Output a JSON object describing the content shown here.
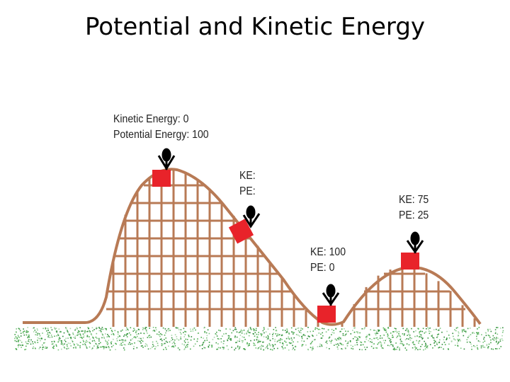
{
  "title": "Potential and Kinetic Energy",
  "colors": {
    "track": "#b87a55",
    "car": "#e8232a",
    "rider": "#000000",
    "grass": "#3f9e45"
  },
  "labels": {
    "top": {
      "ke": "Kinetic Energy: 0",
      "pe": "Potential Energy: 100"
    },
    "slope": {
      "ke": "KE:",
      "pe": "PE:"
    },
    "bottom": {
      "ke": "KE: 100",
      "pe": "PE: 0"
    },
    "second_hill": {
      "ke": "KE: 75",
      "pe": "PE: 25"
    }
  }
}
